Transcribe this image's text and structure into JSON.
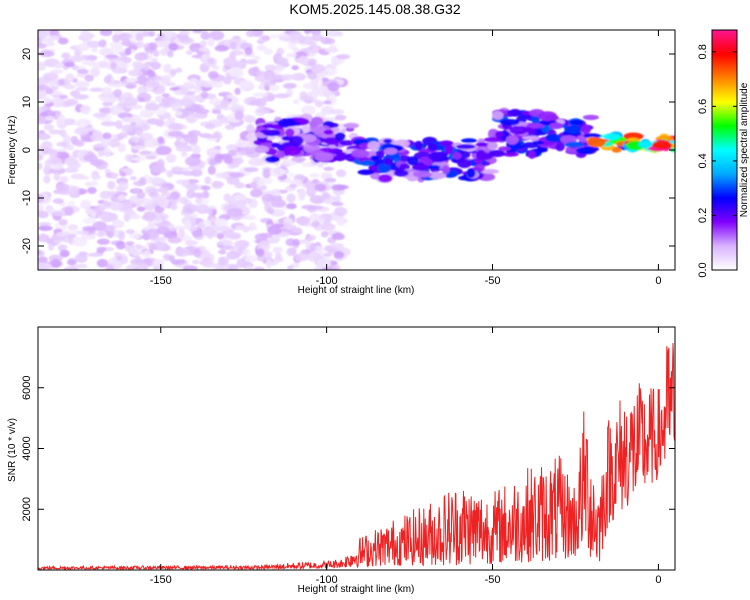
{
  "title": "KOM5.2025.145.08.38.G32",
  "chart_data": [
    {
      "type": "heatmap",
      "xlabel": "Height of straight line (km)",
      "ylabel": "Frequency (Hz)",
      "xlim": [
        -187,
        5
      ],
      "ylim": [
        -25,
        25
      ],
      "xticks": [
        -150,
        -100,
        -50,
        0
      ],
      "yticks": [
        -20,
        -10,
        0,
        10,
        20
      ],
      "colorbar": {
        "label": "Normalized spectral amplitude",
        "range": [
          0,
          0.88
        ],
        "ticks": [
          0.0,
          0.2,
          0.4,
          0.6,
          0.8
        ],
        "colormap": [
          "#ffffff",
          "#d9b3ff",
          "#8000ff",
          "#0000ff",
          "#00aaff",
          "#00ffff",
          "#00ff00",
          "#ffff00",
          "#ff8000",
          "#ff0000",
          "#ff1493"
        ]
      },
      "features": [
        {
          "region": "noise",
          "x": [
            -187,
            -95
          ],
          "y": [
            -25,
            25
          ],
          "amplitude": 0.08
        },
        {
          "region": "band",
          "x": [
            -120,
            -90
          ],
          "y": [
            -2,
            6
          ],
          "amplitude": 0.2
        },
        {
          "region": "band",
          "x": [
            -90,
            -50
          ],
          "y": [
            -6,
            2
          ],
          "amplitude": 0.25
        },
        {
          "region": "band",
          "x": [
            -50,
            -20
          ],
          "y": [
            -1,
            8
          ],
          "amplitude": 0.25
        },
        {
          "region": "band",
          "x": [
            -20,
            5
          ],
          "y": [
            0,
            3
          ],
          "amplitude": 0.7
        },
        {
          "region": "peak",
          "x": [
            -10,
            3
          ],
          "y": [
            0.5,
            1.5
          ],
          "amplitude": 0.85
        }
      ]
    },
    {
      "type": "line",
      "xlabel": "Height of straight line (km)",
      "ylabel": "SNR (10 * v/v)",
      "xlim": [
        -187,
        5
      ],
      "ylim": [
        0,
        8000
      ],
      "xticks": [
        -150,
        -100,
        -50,
        0
      ],
      "yticks": [
        2000,
        4000,
        6000
      ],
      "color": "#ee2222",
      "envelope": {
        "x": [
          -187,
          -120,
          -110,
          -100,
          -95,
          -90,
          -80,
          -70,
          -60,
          -50,
          -40,
          -30,
          -25,
          -22,
          -20,
          -18,
          -15,
          -10,
          -5,
          0,
          3,
          5
        ],
        "low": [
          30,
          30,
          40,
          50,
          80,
          100,
          150,
          150,
          150,
          200,
          250,
          300,
          400,
          900,
          200,
          100,
          1500,
          2000,
          2500,
          3000,
          3500,
          3400
        ],
        "high": [
          120,
          150,
          250,
          300,
          400,
          1100,
          1700,
          2200,
          3000,
          2600,
          3400,
          3800,
          3000,
          5800,
          4200,
          3000,
          5200,
          6100,
          6200,
          6000,
          7800,
          7900
        ]
      }
    }
  ]
}
